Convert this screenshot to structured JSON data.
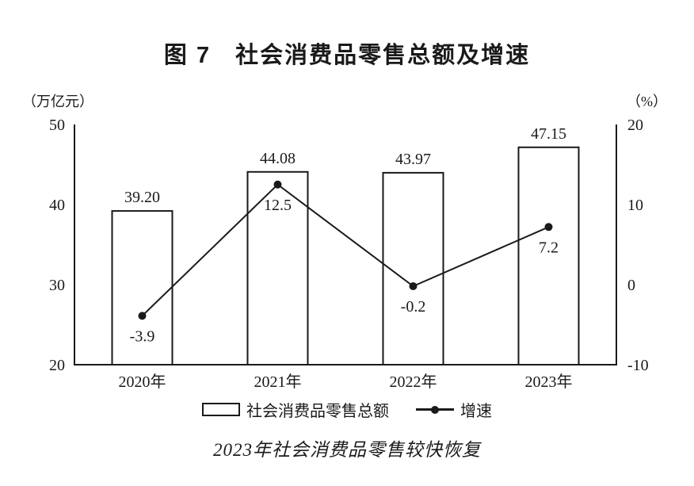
{
  "chart_data": {
    "type": "bar+line",
    "title": "图 7　社会消费品零售总额及增速",
    "caption": "2023年社会消费品零售较快恢复",
    "categories": [
      "2020年",
      "2021年",
      "2022年",
      "2023年"
    ],
    "series": [
      {
        "name": "社会消费品零售总额",
        "type": "bar",
        "axis": "left",
        "values": [
          39.2,
          44.08,
          43.97,
          47.15
        ],
        "labels": [
          "39.20",
          "44.08",
          "43.97",
          "47.15"
        ]
      },
      {
        "name": "增速",
        "type": "line",
        "axis": "right",
        "values": [
          -3.9,
          12.5,
          -0.2,
          7.2
        ],
        "labels": [
          "-3.9",
          "12.5",
          "-0.2",
          "7.2"
        ]
      }
    ],
    "left_axis": {
      "unit": "（万亿元）",
      "min": 20,
      "max": 50,
      "ticks": [
        50,
        40,
        30,
        20
      ]
    },
    "right_axis": {
      "unit": "（%）",
      "min": -10,
      "max": 20,
      "ticks": [
        20,
        10,
        0,
        -10
      ]
    },
    "grid": false,
    "legend_position": "bottom",
    "colors": {
      "foreground": "#1a1a1a",
      "background": "#ffffff"
    }
  }
}
